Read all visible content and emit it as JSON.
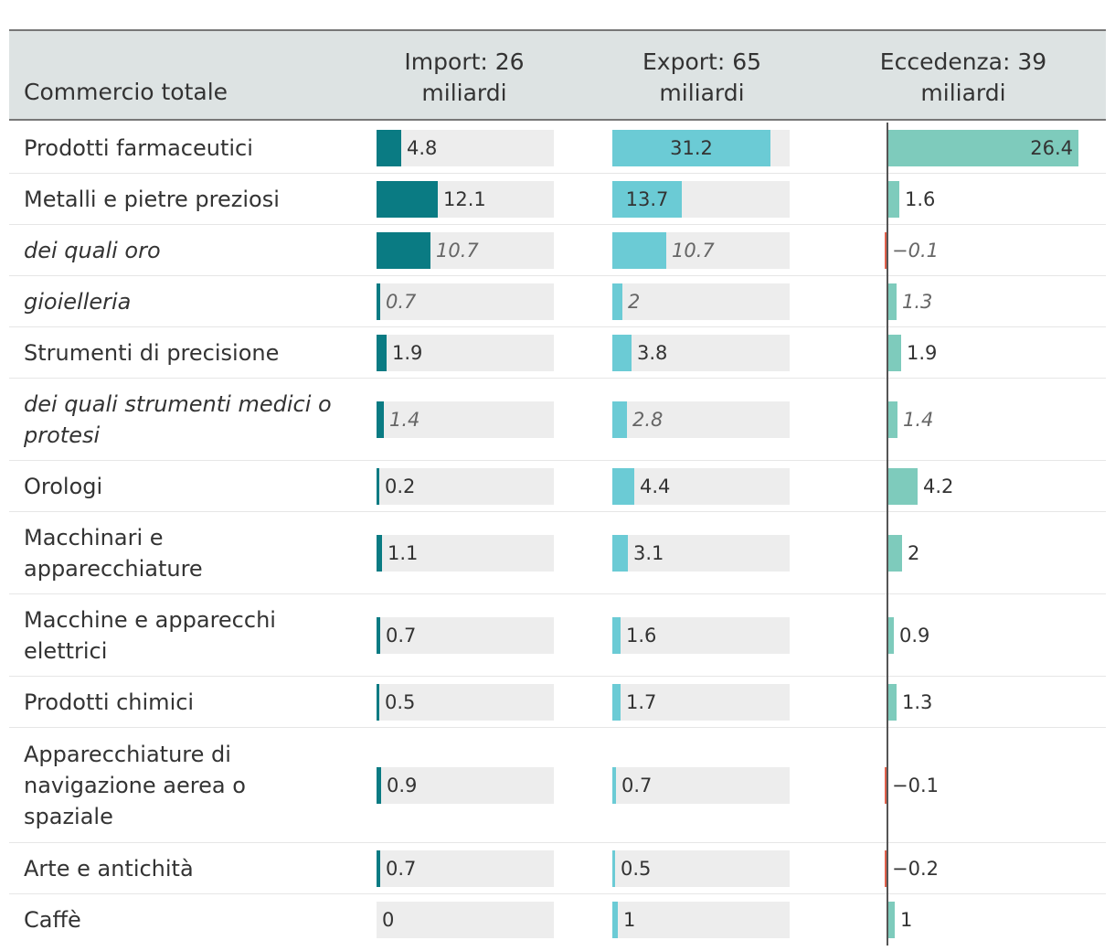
{
  "header": {
    "label": "Commercio totale",
    "import_line1": "Import: 26",
    "import_line2": "miliardi",
    "export_line1": "Export: 65",
    "export_line2": "miliardi",
    "surplus_line1": "Eccedenza: 39",
    "surplus_line2": "miliardi"
  },
  "colors": {
    "import": "#0a7b83",
    "export": "#6bcbd5",
    "surplus_pos": "#7ecbbc",
    "surplus_neg": "#e0614c",
    "track": "#ededed",
    "header_bg": "#dde3e3"
  },
  "chart_data": {
    "type": "table",
    "columns": [
      "Import",
      "Export",
      "Eccedenza"
    ],
    "scale": {
      "import_max": 35,
      "export_max": 35,
      "surplus_max": 30
    },
    "rows": [
      {
        "label": "Prodotti farmaceutici",
        "italic": false,
        "import": 4.8,
        "export": 31.2,
        "surplus": 26.4,
        "import_text": "4.8",
        "export_text": "31.2",
        "surplus_text": "26.4"
      },
      {
        "label": "Metalli e pietre preziosi",
        "italic": false,
        "import": 12.1,
        "export": 13.7,
        "surplus": 1.6,
        "import_text": "12.1",
        "export_text": "13.7",
        "surplus_text": "1.6"
      },
      {
        "label": "dei quali oro",
        "italic": true,
        "import": 10.7,
        "export": 10.7,
        "surplus": -0.1,
        "import_text": "10.7",
        "export_text": "10.7",
        "surplus_text": "−0.1"
      },
      {
        "label": "gioielleria",
        "italic": true,
        "import": 0.7,
        "export": 2,
        "surplus": 1.3,
        "import_text": "0.7",
        "export_text": "2",
        "surplus_text": "1.3"
      },
      {
        "label": "Strumenti di precisione",
        "italic": false,
        "import": 1.9,
        "export": 3.8,
        "surplus": 1.9,
        "import_text": "1.9",
        "export_text": "3.8",
        "surplus_text": "1.9"
      },
      {
        "label": "dei quali strumenti medici o protesi",
        "italic": true,
        "import": 1.4,
        "export": 2.8,
        "surplus": 1.4,
        "import_text": "1.4",
        "export_text": "2.8",
        "surplus_text": "1.4"
      },
      {
        "label": "Orologi",
        "italic": false,
        "import": 0.2,
        "export": 4.4,
        "surplus": 4.2,
        "import_text": "0.2",
        "export_text": "4.4",
        "surplus_text": "4.2"
      },
      {
        "label": "Macchinari e apparecchiature",
        "italic": false,
        "import": 1.1,
        "export": 3.1,
        "surplus": 2,
        "import_text": "1.1",
        "export_text": "3.1",
        "surplus_text": "2"
      },
      {
        "label": "Macchine e apparecchi elettrici",
        "italic": false,
        "import": 0.7,
        "export": 1.6,
        "surplus": 0.9,
        "import_text": "0.7",
        "export_text": "1.6",
        "surplus_text": "0.9"
      },
      {
        "label": "Prodotti chimici",
        "italic": false,
        "import": 0.5,
        "export": 1.7,
        "surplus": 1.3,
        "import_text": "0.5",
        "export_text": "1.7",
        "surplus_text": "1.3"
      },
      {
        "label": "Apparecchiature di navigazione aerea o spaziale",
        "italic": false,
        "import": 0.9,
        "export": 0.7,
        "surplus": -0.1,
        "import_text": "0.9",
        "export_text": "0.7",
        "surplus_text": "−0.1"
      },
      {
        "label": "Arte e antichità",
        "italic": false,
        "import": 0.7,
        "export": 0.5,
        "surplus": -0.2,
        "import_text": "0.7",
        "export_text": "0.5",
        "surplus_text": "−0.2"
      },
      {
        "label": "Caffè",
        "italic": false,
        "import": 0,
        "export": 1,
        "surplus": 1,
        "import_text": "0",
        "export_text": "1",
        "surplus_text": "1"
      }
    ]
  }
}
